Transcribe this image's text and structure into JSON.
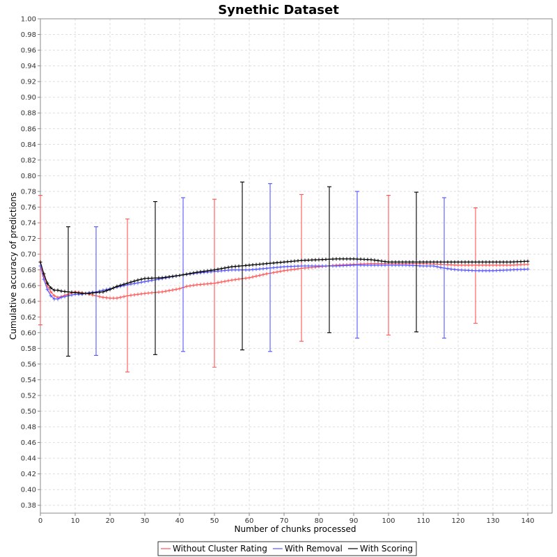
{
  "chart_data": {
    "type": "line",
    "title": "Synethic Dataset",
    "xlabel": "Number of chunks processed",
    "ylabel": "Cumulative accuracy of predictions",
    "xlim": [
      0,
      147
    ],
    "ylim": [
      0.37,
      1.0
    ],
    "xticks": [
      0,
      10,
      20,
      30,
      40,
      50,
      60,
      70,
      80,
      90,
      100,
      110,
      120,
      130,
      140
    ],
    "yticks": [
      0.38,
      0.4,
      0.42,
      0.44,
      0.46,
      0.48,
      0.5,
      0.52,
      0.54,
      0.56,
      0.58,
      0.6,
      0.62,
      0.64,
      0.66,
      0.68,
      0.7,
      0.72,
      0.74,
      0.76,
      0.78,
      0.8,
      0.82,
      0.84,
      0.86,
      0.88,
      0.9,
      0.92,
      0.94,
      0.96,
      0.98,
      1.0
    ],
    "grid": true,
    "legend_position": "bottom",
    "series": [
      {
        "name": "Without Cluster Rating",
        "color": "#ff5555",
        "points": [
          [
            0,
            0.69
          ],
          [
            1,
            0.672
          ],
          [
            2,
            0.66
          ],
          [
            3,
            0.652
          ],
          [
            4,
            0.647
          ],
          [
            5,
            0.645
          ],
          [
            6,
            0.646
          ],
          [
            8,
            0.649
          ],
          [
            10,
            0.652
          ],
          [
            12,
            0.651
          ],
          [
            14,
            0.649
          ],
          [
            16,
            0.647
          ],
          [
            18,
            0.645
          ],
          [
            20,
            0.644
          ],
          [
            22,
            0.644
          ],
          [
            25,
            0.647
          ],
          [
            30,
            0.65
          ],
          [
            35,
            0.652
          ],
          [
            40,
            0.656
          ],
          [
            42,
            0.659
          ],
          [
            45,
            0.661
          ],
          [
            50,
            0.663
          ],
          [
            55,
            0.667
          ],
          [
            60,
            0.67
          ],
          [
            65,
            0.675
          ],
          [
            70,
            0.679
          ],
          [
            75,
            0.682
          ],
          [
            80,
            0.684
          ],
          [
            85,
            0.686
          ],
          [
            90,
            0.687
          ],
          [
            95,
            0.688
          ],
          [
            100,
            0.688
          ],
          [
            105,
            0.688
          ],
          [
            110,
            0.688
          ],
          [
            115,
            0.687
          ],
          [
            120,
            0.686
          ],
          [
            125,
            0.686
          ],
          [
            130,
            0.686
          ],
          [
            135,
            0.686
          ],
          [
            140,
            0.687
          ]
        ],
        "error_bars": [
          {
            "x": 0,
            "low": 0.61,
            "high": 0.775
          },
          {
            "x": 25,
            "low": 0.55,
            "high": 0.745
          },
          {
            "x": 50,
            "low": 0.556,
            "high": 0.77
          },
          {
            "x": 75,
            "low": 0.589,
            "high": 0.776
          },
          {
            "x": 100,
            "low": 0.597,
            "high": 0.775
          },
          {
            "x": 125,
            "low": 0.612,
            "high": 0.759
          }
        ]
      },
      {
        "name": "With Removal",
        "color": "#5555ff",
        "points": [
          [
            0,
            0.685
          ],
          [
            1,
            0.668
          ],
          [
            2,
            0.655
          ],
          [
            3,
            0.647
          ],
          [
            4,
            0.643
          ],
          [
            5,
            0.643
          ],
          [
            6,
            0.645
          ],
          [
            8,
            0.647
          ],
          [
            10,
            0.649
          ],
          [
            12,
            0.649
          ],
          [
            14,
            0.651
          ],
          [
            16,
            0.652
          ],
          [
            18,
            0.654
          ],
          [
            20,
            0.656
          ],
          [
            22,
            0.658
          ],
          [
            25,
            0.661
          ],
          [
            30,
            0.665
          ],
          [
            35,
            0.669
          ],
          [
            40,
            0.673
          ],
          [
            45,
            0.676
          ],
          [
            50,
            0.678
          ],
          [
            55,
            0.68
          ],
          [
            60,
            0.68
          ],
          [
            65,
            0.682
          ],
          [
            70,
            0.684
          ],
          [
            75,
            0.685
          ],
          [
            80,
            0.685
          ],
          [
            85,
            0.685
          ],
          [
            90,
            0.686
          ],
          [
            95,
            0.686
          ],
          [
            100,
            0.686
          ],
          [
            105,
            0.686
          ],
          [
            110,
            0.685
          ],
          [
            113,
            0.685
          ],
          [
            115,
            0.683
          ],
          [
            118,
            0.681
          ],
          [
            120,
            0.68
          ],
          [
            125,
            0.679
          ],
          [
            130,
            0.679
          ],
          [
            135,
            0.68
          ],
          [
            140,
            0.681
          ]
        ],
        "error_bars": [
          {
            "x": 16,
            "low": 0.571,
            "high": 0.735
          },
          {
            "x": 41,
            "low": 0.576,
            "high": 0.772
          },
          {
            "x": 66,
            "low": 0.576,
            "high": 0.79
          },
          {
            "x": 91,
            "low": 0.593,
            "high": 0.78
          },
          {
            "x": 116,
            "low": 0.593,
            "high": 0.772
          }
        ]
      },
      {
        "name": "With Scoring",
        "color": "#000000",
        "points": [
          [
            0,
            0.69
          ],
          [
            1,
            0.675
          ],
          [
            2,
            0.663
          ],
          [
            3,
            0.657
          ],
          [
            4,
            0.654
          ],
          [
            5,
            0.654
          ],
          [
            6,
            0.653
          ],
          [
            8,
            0.652
          ],
          [
            10,
            0.651
          ],
          [
            12,
            0.65
          ],
          [
            14,
            0.65
          ],
          [
            16,
            0.651
          ],
          [
            18,
            0.652
          ],
          [
            20,
            0.655
          ],
          [
            22,
            0.659
          ],
          [
            25,
            0.663
          ],
          [
            28,
            0.667
          ],
          [
            30,
            0.669
          ],
          [
            35,
            0.67
          ],
          [
            40,
            0.673
          ],
          [
            45,
            0.677
          ],
          [
            50,
            0.68
          ],
          [
            55,
            0.684
          ],
          [
            60,
            0.686
          ],
          [
            65,
            0.688
          ],
          [
            70,
            0.69
          ],
          [
            75,
            0.692
          ],
          [
            80,
            0.693
          ],
          [
            85,
            0.694
          ],
          [
            90,
            0.694
          ],
          [
            95,
            0.693
          ],
          [
            100,
            0.69
          ],
          [
            105,
            0.69
          ],
          [
            110,
            0.69
          ],
          [
            115,
            0.69
          ],
          [
            120,
            0.69
          ],
          [
            125,
            0.69
          ],
          [
            130,
            0.69
          ],
          [
            135,
            0.69
          ],
          [
            140,
            0.691
          ]
        ],
        "error_bars": [
          {
            "x": 8,
            "low": 0.57,
            "high": 0.735
          },
          {
            "x": 33,
            "low": 0.572,
            "high": 0.767
          },
          {
            "x": 58,
            "low": 0.578,
            "high": 0.792
          },
          {
            "x": 83,
            "low": 0.6,
            "high": 0.786
          },
          {
            "x": 108,
            "low": 0.601,
            "high": 0.779
          }
        ]
      }
    ]
  }
}
